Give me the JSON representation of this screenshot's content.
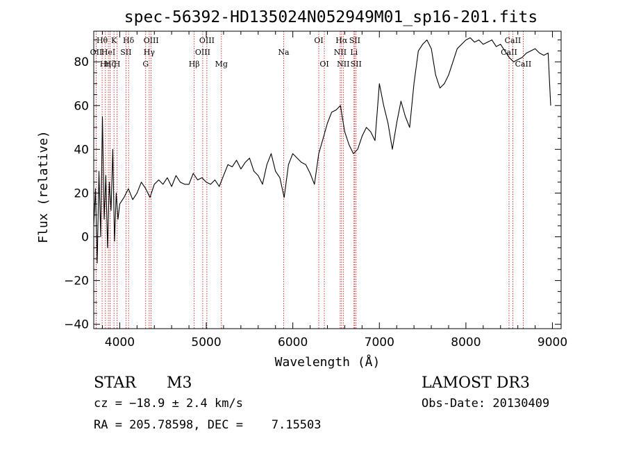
{
  "chart_data": {
    "type": "line",
    "title": "spec-56392-HD135024N052949M01_sp16-201.fits",
    "xlabel": "Wavelength (Å)",
    "ylabel": "Flux (relative)",
    "xlim": [
      3700,
      9100
    ],
    "ylim": [
      -42,
      94
    ],
    "xticks": [
      4000,
      5000,
      6000,
      7000,
      8000,
      9000
    ],
    "yticks": [
      -40,
      -20,
      0,
      20,
      40,
      60,
      80
    ],
    "series": [
      {
        "name": "flux",
        "x": [
          3700,
          3720,
          3740,
          3760,
          3780,
          3800,
          3820,
          3840,
          3860,
          3880,
          3900,
          3920,
          3940,
          3960,
          3980,
          4000,
          4050,
          4100,
          4150,
          4200,
          4250,
          4300,
          4350,
          4400,
          4450,
          4500,
          4550,
          4600,
          4650,
          4700,
          4750,
          4800,
          4850,
          4900,
          4950,
          5000,
          5050,
          5100,
          5150,
          5200,
          5250,
          5300,
          5350,
          5400,
          5450,
          5500,
          5550,
          5600,
          5650,
          5700,
          5750,
          5800,
          5850,
          5900,
          5950,
          6000,
          6050,
          6100,
          6150,
          6200,
          6250,
          6300,
          6350,
          6400,
          6450,
          6500,
          6550,
          6600,
          6650,
          6700,
          6750,
          6800,
          6850,
          6900,
          6950,
          7000,
          7050,
          7100,
          7150,
          7200,
          7250,
          7300,
          7350,
          7400,
          7450,
          7500,
          7550,
          7600,
          7650,
          7700,
          7750,
          7800,
          7850,
          7900,
          7950,
          8000,
          8050,
          8100,
          8150,
          8200,
          8250,
          8300,
          8350,
          8400,
          8450,
          8500,
          8550,
          8600,
          8650,
          8700,
          8750,
          8800,
          8850,
          8900,
          8950,
          8980
        ],
        "y": [
          5,
          22,
          -12,
          30,
          0,
          55,
          8,
          28,
          -5,
          25,
          12,
          40,
          -2,
          20,
          8,
          15,
          18,
          22,
          17,
          20,
          25,
          22,
          18,
          24,
          26,
          24,
          27,
          23,
          28,
          25,
          24,
          24,
          29,
          26,
          27,
          25,
          24,
          26,
          23,
          28,
          33,
          32,
          35,
          31,
          34,
          36,
          30,
          28,
          24,
          33,
          38,
          30,
          27,
          18,
          33,
          38,
          36,
          34,
          33,
          29,
          24,
          38,
          45,
          52,
          57,
          58,
          60,
          48,
          42,
          38,
          40,
          46,
          50,
          48,
          44,
          70,
          60,
          52,
          40,
          52,
          62,
          55,
          50,
          70,
          85,
          88,
          90,
          86,
          74,
          68,
          70,
          74,
          80,
          86,
          88,
          90,
          91,
          89,
          90,
          88,
          89,
          90,
          87,
          88,
          85,
          82,
          80,
          81,
          82,
          84,
          85,
          86,
          84,
          83,
          84,
          60
        ]
      }
    ],
    "lines": [
      {
        "wl": 3728,
        "label": "OII",
        "row": 2
      },
      {
        "wl": 3797,
        "label": "Hθ",
        "row": 1
      },
      {
        "wl": 3835,
        "label": "Hη",
        "row": 3
      },
      {
        "wl": 3869,
        "label": "HeI",
        "row": 2
      },
      {
        "wl": 3889,
        "label": "Hζ",
        "row": 3
      },
      {
        "wl": 3934,
        "label": "K",
        "row": 1
      },
      {
        "wl": 3969,
        "label": "H",
        "row": 3
      },
      {
        "wl": 4072,
        "label": "SII",
        "row": 2
      },
      {
        "wl": 4102,
        "label": "Hδ",
        "row": 1
      },
      {
        "wl": 4300,
        "label": "G",
        "row": 3
      },
      {
        "wl": 4341,
        "label": "Hγ",
        "row": 2
      },
      {
        "wl": 4363,
        "label": "OIII",
        "row": 1
      },
      {
        "wl": 4861,
        "label": "Hβ",
        "row": 3
      },
      {
        "wl": 4959,
        "label": "OIII",
        "row": 2
      },
      {
        "wl": 5007,
        "label": "OIII",
        "row": 1
      },
      {
        "wl": 5175,
        "label": "Mg",
        "row": 3
      },
      {
        "wl": 5894,
        "label": "Na",
        "row": 2
      },
      {
        "wl": 6300,
        "label": "OI",
        "row": 1
      },
      {
        "wl": 6364,
        "label": "OI",
        "row": 3
      },
      {
        "wl": 6548,
        "label": "NII",
        "row": 2
      },
      {
        "wl": 6563,
        "label": "Hα",
        "row": 1
      },
      {
        "wl": 6583,
        "label": "NII",
        "row": 3
      },
      {
        "wl": 6707,
        "label": "Li",
        "row": 2
      },
      {
        "wl": 6716,
        "label": "SII",
        "row": 1
      },
      {
        "wl": 6731,
        "label": "SII",
        "row": 3
      },
      {
        "wl": 8498,
        "label": "CaII",
        "row": 2
      },
      {
        "wl": 8542,
        "label": "CaII",
        "row": 1
      },
      {
        "wl": 8662,
        "label": "CaII",
        "row": 3
      }
    ]
  },
  "info": {
    "obj_class": "STAR",
    "subclass": "M3",
    "cz": "cz = −18.9 ± 2.4 km/s",
    "coords": "RA = 205.78598, DEC =    7.15503",
    "survey": "LAMOST DR3",
    "obs_date": "Obs-Date: 20130409"
  },
  "colors": {
    "line_marker": "#cc0000",
    "spectrum": "#000000"
  }
}
